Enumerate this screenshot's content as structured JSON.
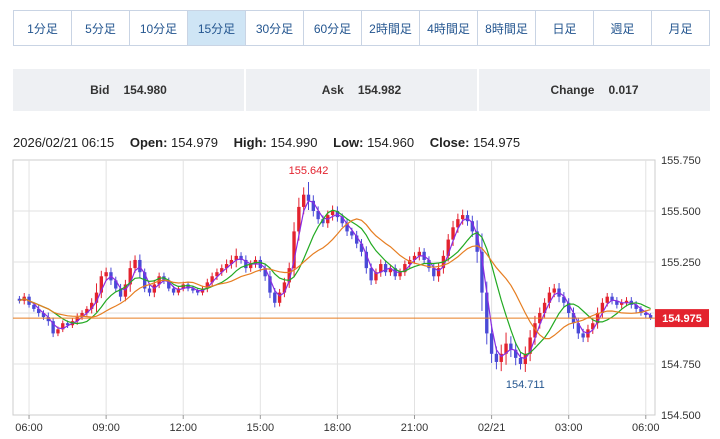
{
  "timeframe_tabs": [
    {
      "label": "1分足",
      "active": false
    },
    {
      "label": "5分足",
      "active": false
    },
    {
      "label": "10分足",
      "active": false
    },
    {
      "label": "15分足",
      "active": true
    },
    {
      "label": "30分足",
      "active": false
    },
    {
      "label": "60分足",
      "active": false
    },
    {
      "label": "2時間足",
      "active": false
    },
    {
      "label": "4時間足",
      "active": false
    },
    {
      "label": "8時間足",
      "active": false
    },
    {
      "label": "日足",
      "active": false
    },
    {
      "label": "週足",
      "active": false
    },
    {
      "label": "月足",
      "active": false
    }
  ],
  "quote": {
    "bid_label": "Bid",
    "bid_value": "154.980",
    "ask_label": "Ask",
    "ask_value": "154.982",
    "change_label": "Change",
    "change_value": "0.017"
  },
  "ohlc": {
    "datetime": "2026/02/21 06:15",
    "open_label": "Open:",
    "open": "154.979",
    "high_label": "High:",
    "high": "154.990",
    "low_label": "Low:",
    "low": "154.960",
    "close_label": "Close:",
    "close": "154.975"
  },
  "colors": {
    "up": "#e3222e",
    "down": "#4a4ad6",
    "ma_short": "#8a2be2",
    "ma_mid": "#22aa22",
    "ma_long": "#e67e22",
    "last_price_bg": "#e3222e"
  },
  "chart_data": {
    "type": "candlestick",
    "ylim": [
      154.5,
      155.75
    ],
    "y_ticks": [
      "155.750",
      "155.500",
      "155.250",
      "155.000",
      "154.750",
      "154.500"
    ],
    "x_tick_labels": [
      "06:00",
      "09:00",
      "12:00",
      "15:00",
      "18:00",
      "21:00",
      "02/21",
      "03:00",
      "06:00"
    ],
    "x_tick_index": [
      2,
      18,
      34,
      50,
      66,
      82,
      98,
      114,
      130
    ],
    "high_annotation": "155.642",
    "low_annotation": "154.711",
    "last_price_label": "154.975",
    "last_price": 154.975,
    "grid": true,
    "close": [
      155.06,
      155.08,
      155.04,
      155.02,
      155.0,
      154.98,
      154.96,
      154.9,
      154.92,
      154.95,
      154.94,
      154.96,
      154.98,
      155.0,
      155.02,
      155.05,
      155.1,
      155.18,
      155.2,
      155.16,
      155.12,
      155.08,
      155.14,
      155.22,
      155.26,
      155.2,
      155.12,
      155.1,
      155.14,
      155.18,
      155.16,
      155.12,
      155.1,
      155.12,
      155.14,
      155.12,
      155.11,
      155.1,
      155.12,
      155.15,
      155.18,
      155.2,
      155.22,
      155.24,
      155.26,
      155.28,
      155.26,
      155.22,
      155.24,
      155.26,
      155.22,
      155.18,
      155.1,
      155.05,
      155.1,
      155.15,
      155.22,
      155.4,
      155.52,
      155.58,
      155.55,
      155.5,
      155.46,
      155.44,
      155.48,
      155.5,
      155.47,
      155.44,
      155.4,
      155.38,
      155.34,
      155.3,
      155.22,
      155.16,
      155.2,
      155.24,
      155.2,
      155.22,
      155.18,
      155.2,
      155.24,
      155.26,
      155.28,
      155.3,
      155.26,
      155.22,
      155.18,
      155.22,
      155.28,
      155.36,
      155.42,
      155.46,
      155.48,
      155.45,
      155.4,
      155.3,
      155.1,
      154.9,
      154.8,
      154.76,
      154.8,
      154.85,
      154.82,
      154.78,
      154.75,
      154.8,
      154.88,
      154.95,
      155.0,
      155.05,
      155.1,
      155.12,
      155.08,
      155.05,
      155.0,
      154.95,
      154.9,
      154.88,
      154.92,
      154.95,
      155.0,
      155.05,
      155.08,
      155.06,
      155.04,
      155.05,
      155.06,
      155.04,
      155.02,
      155.0,
      154.99,
      154.975
    ],
    "range": [
      0.03,
      0.04,
      0.03,
      0.03,
      0.04,
      0.03,
      0.05,
      0.04,
      0.03,
      0.03,
      0.03,
      0.03,
      0.04,
      0.03,
      0.03,
      0.05,
      0.1,
      0.06,
      0.05,
      0.05,
      0.04,
      0.05,
      0.05,
      0.08,
      0.05,
      0.06,
      0.04,
      0.04,
      0.05,
      0.04,
      0.04,
      0.03,
      0.03,
      0.03,
      0.03,
      0.03,
      0.03,
      0.03,
      0.03,
      0.04,
      0.04,
      0.04,
      0.04,
      0.05,
      0.05,
      0.08,
      0.04,
      0.05,
      0.04,
      0.04,
      0.04,
      0.05,
      0.06,
      0.05,
      0.04,
      0.05,
      0.06,
      0.1,
      0.1,
      0.08,
      0.1,
      0.06,
      0.05,
      0.04,
      0.05,
      0.06,
      0.05,
      0.04,
      0.05,
      0.04,
      0.05,
      0.05,
      0.06,
      0.05,
      0.04,
      0.05,
      0.04,
      0.04,
      0.04,
      0.04,
      0.04,
      0.04,
      0.04,
      0.05,
      0.04,
      0.04,
      0.05,
      0.06,
      0.06,
      0.06,
      0.07,
      0.06,
      0.06,
      0.05,
      0.06,
      0.12,
      0.2,
      0.12,
      0.1,
      0.08,
      0.1,
      0.12,
      0.08,
      0.08,
      0.06,
      0.08,
      0.08,
      0.08,
      0.06,
      0.05,
      0.06,
      0.05,
      0.06,
      0.05,
      0.05,
      0.06,
      0.06,
      0.05,
      0.05,
      0.05,
      0.06,
      0.05,
      0.04,
      0.04,
      0.04,
      0.04,
      0.04,
      0.04,
      0.04,
      0.03,
      0.03,
      0.02
    ]
  }
}
